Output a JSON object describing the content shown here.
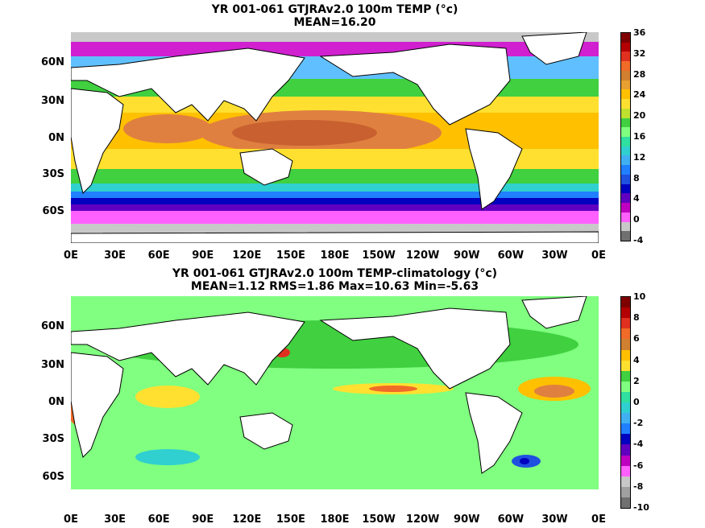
{
  "panels": [
    {
      "title": "YR 001-061 GTJRAv2.0 100m TEMP (°c)",
      "subtitle": "MEAN=16.20",
      "lat_labels": [
        "60N",
        "30N",
        "0N",
        "30S",
        "60S"
      ],
      "lon_labels": [
        "0E",
        "30E",
        "60E",
        "90E",
        "120E",
        "150E",
        "180E",
        "150W",
        "120W",
        "90W",
        "60W",
        "30W",
        "0E"
      ],
      "colorbar": {
        "ticks": [
          "36",
          "32",
          "28",
          "24",
          "20",
          "16",
          "12",
          "8",
          "4",
          "0",
          "-4"
        ],
        "colors": [
          "#7f0000",
          "#b30000",
          "#e03020",
          "#f06a28",
          "#d08030",
          "#e8a030",
          "#ffc000",
          "#ffe030",
          "#c0e030",
          "#40d040",
          "#80ff80",
          "#30e0a0",
          "#30d0d0",
          "#40b0f0",
          "#2080ff",
          "#2050e0",
          "#0000c0",
          "#6000c0",
          "#c000c0",
          "#ff60ff",
          "#c8c8c8",
          "#707070"
        ]
      }
    },
    {
      "title": "YR 001-061 GTJRAv2.0 100m TEMP-climatology (°c)",
      "subtitle": "MEAN=1.12   RMS=1.86   Max=10.63   Min=-5.63",
      "lat_labels": [
        "60N",
        "30N",
        "0N",
        "30S",
        "60S"
      ],
      "lon_labels": [
        "0E",
        "30E",
        "60E",
        "90E",
        "120E",
        "150E",
        "180E",
        "150W",
        "120W",
        "90W",
        "60W",
        "30W",
        "0E"
      ],
      "colorbar": {
        "ticks": [
          "10",
          "8",
          "6",
          "4",
          "2",
          "0",
          "-2",
          "-4",
          "-6",
          "-8",
          "-10"
        ],
        "colors": [
          "#7f0000",
          "#b30000",
          "#e03020",
          "#f06a28",
          "#d08030",
          "#ffc000",
          "#ffe030",
          "#40d040",
          "#80ff80",
          "#30e0a0",
          "#30d0d0",
          "#40b0f0",
          "#2080ff",
          "#0000c0",
          "#6000c0",
          "#c000c0",
          "#ff60ff",
          "#c8c8c8",
          "#a0a0a0",
          "#707070"
        ]
      }
    }
  ],
  "chart_data": [
    {
      "type": "heatmap",
      "title": "YR 001-061 GTJRAv2.0 100m TEMP (°c)",
      "subtitle": "MEAN=16.20",
      "x_ticks": [
        "0E",
        "30E",
        "60E",
        "90E",
        "120E",
        "150E",
        "180E",
        "150W",
        "120W",
        "90W",
        "60W",
        "30W",
        "0E"
      ],
      "y_ticks": [
        "60N",
        "30N",
        "0N",
        "30S",
        "60S"
      ],
      "xlim": [
        0,
        360
      ],
      "ylim": [
        -80,
        80
      ],
      "colorbar_range": [
        -4,
        36
      ],
      "colorbar_ticks": [
        36,
        32,
        28,
        24,
        20,
        16,
        12,
        8,
        4,
        0,
        -4
      ],
      "mean": 16.2
    },
    {
      "type": "heatmap",
      "title": "YR 001-061 GTJRAv2.0 100m TEMP-climatology (°c)",
      "subtitle": "MEAN=1.12   RMS=1.86   Max=10.63   Min=-5.63",
      "x_ticks": [
        "0E",
        "30E",
        "60E",
        "90E",
        "120E",
        "150E",
        "180E",
        "150W",
        "120W",
        "90W",
        "60W",
        "30W",
        "0E"
      ],
      "y_ticks": [
        "60N",
        "30N",
        "0N",
        "30S",
        "60S"
      ],
      "xlim": [
        0,
        360
      ],
      "ylim": [
        -80,
        80
      ],
      "colorbar_range": [
        -10,
        10
      ],
      "colorbar_ticks": [
        10,
        8,
        6,
        4,
        2,
        0,
        -2,
        -4,
        -6,
        -8,
        -10
      ],
      "mean": 1.12,
      "rms": 1.86,
      "max": 10.63,
      "min": -5.63
    }
  ]
}
